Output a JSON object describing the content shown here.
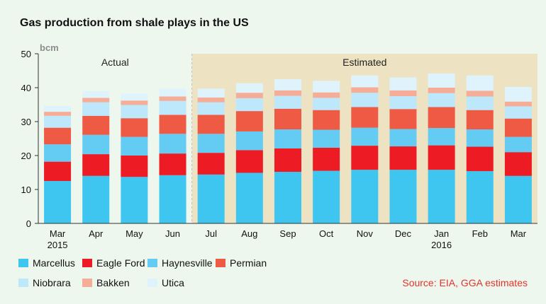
{
  "chart_data": {
    "type": "stacked-bar",
    "title": "Gas production from shale plays in the US",
    "unit": "bcm",
    "ylim": [
      0,
      50
    ],
    "yticks": [
      0,
      10,
      20,
      30,
      40,
      50
    ],
    "grid": false,
    "legend_placement": "bottom",
    "source": "Source: EIA, GGA estimates",
    "categories": [
      "Mar",
      "Apr",
      "May",
      "Jun",
      "Jul",
      "Aug",
      "Sep",
      "Oct",
      "Nov",
      "Dec",
      "Jan",
      "Feb",
      "Mar"
    ],
    "year_labels": [
      "2015",
      "",
      "",
      "",
      "",
      "",
      "",
      "",
      "",
      "",
      "2016",
      "",
      ""
    ],
    "regions": [
      {
        "label": "Actual",
        "from": 0,
        "to": 3,
        "color": "#eef7ee"
      },
      {
        "label": "Estimated",
        "from": 4,
        "to": 12,
        "color": "#ede3c2"
      }
    ],
    "series": [
      {
        "name": "Marcellus",
        "color": "#3ec6f1",
        "values": [
          12.5,
          14.0,
          13.7,
          14.2,
          14.4,
          14.9,
          15.2,
          15.5,
          15.8,
          15.8,
          15.8,
          15.4,
          14.0
        ]
      },
      {
        "name": "Eagle Ford",
        "color": "#ed1c24",
        "values": [
          5.7,
          6.4,
          6.3,
          6.4,
          6.4,
          6.7,
          6.9,
          6.8,
          7.1,
          6.9,
          7.2,
          7.2,
          7.0
        ]
      },
      {
        "name": "Haynesville",
        "color": "#64cbf3",
        "values": [
          5.1,
          5.7,
          5.5,
          5.8,
          5.6,
          5.5,
          5.6,
          5.3,
          5.3,
          5.1,
          5.1,
          5.1,
          4.5
        ]
      },
      {
        "name": "Permian",
        "color": "#ef5a44",
        "values": [
          4.9,
          5.6,
          5.5,
          5.6,
          5.6,
          6.0,
          6.1,
          5.8,
          6.1,
          5.9,
          6.2,
          5.7,
          5.4
        ]
      },
      {
        "name": "Niobrara",
        "color": "#bde7fb",
        "values": [
          3.5,
          4.0,
          3.9,
          4.1,
          3.7,
          3.8,
          3.8,
          3.6,
          4.2,
          3.8,
          4.1,
          4.0,
          3.6
        ]
      },
      {
        "name": "Bakken",
        "color": "#f5ad97",
        "values": [
          1.2,
          1.3,
          1.3,
          1.3,
          1.4,
          1.6,
          1.6,
          1.6,
          1.6,
          1.7,
          1.6,
          1.7,
          1.4
        ]
      },
      {
        "name": "Utica",
        "color": "#dff3fc",
        "values": [
          1.7,
          2.0,
          2.0,
          2.3,
          2.6,
          2.8,
          3.3,
          3.4,
          3.5,
          3.8,
          4.2,
          4.5,
          4.3
        ]
      }
    ]
  }
}
